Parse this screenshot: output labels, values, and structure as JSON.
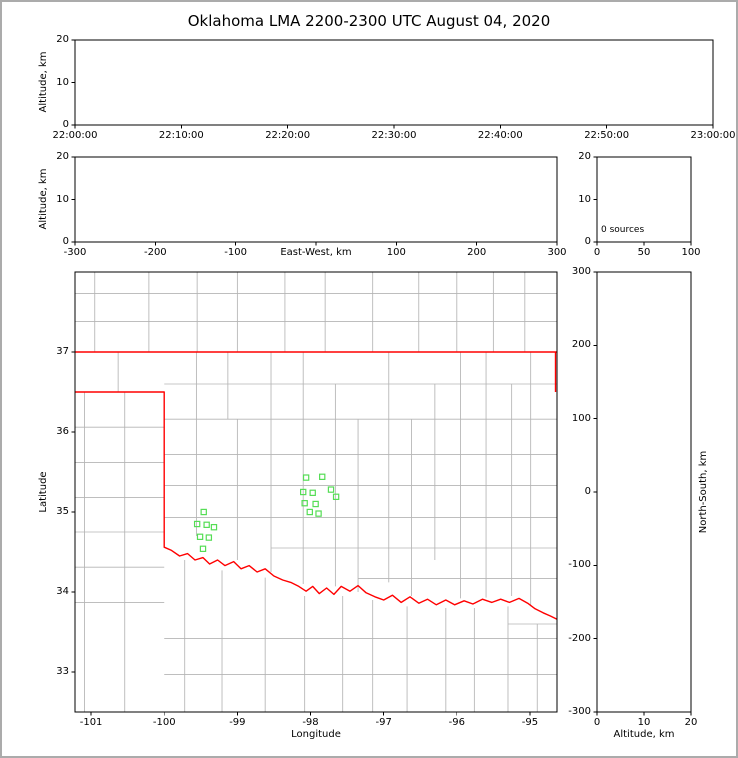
{
  "title": "Oklahoma LMA 2200-2300 UTC August 04, 2020",
  "axis": {
    "altitude_label": "Altitude, km",
    "ew_label": "East-West, km",
    "lon_label": "Longitude",
    "lat_label": "Latitude",
    "ns_label": "North-South, km"
  },
  "histogram_annotation": "0 sources",
  "ticks": {
    "time": [
      "22:00:00",
      "22:10:00",
      "22:20:00",
      "22:30:00",
      "22:40:00",
      "22:50:00",
      "23:00:00"
    ],
    "ew": [
      "-300",
      "-200",
      "-100",
      "",
      "100",
      "200",
      "300"
    ],
    "altitude": [
      "0",
      "10",
      "20"
    ],
    "hist": [
      "0",
      "50",
      "100"
    ],
    "lon": [
      "-101",
      "-100",
      "-99",
      "-98",
      "-97",
      "-96",
      "-95"
    ],
    "lat": [
      "33",
      "34",
      "35",
      "36",
      "37"
    ],
    "ns": [
      "-300",
      "-200",
      "-100",
      "0",
      "100",
      "200",
      "300"
    ]
  },
  "colors": {
    "state_border": "#ff0000",
    "county_lines": "#b4b4b4",
    "stations": "#55dd55",
    "frame": "#000000",
    "outer_border": "#ababab"
  },
  "chart_data": {
    "type": "scatter",
    "title": "Oklahoma LMA 2200-2300 UTC August 04, 2020",
    "time_range_utc": [
      "22:00:00",
      "23:00:00"
    ],
    "source_count": 0,
    "panels": [
      {
        "name": "altitude-vs-time",
        "ylabel": "Altitude, km",
        "ylim_km": [
          0,
          20
        ],
        "points": []
      },
      {
        "name": "altitude-vs-east-west",
        "xlabel": "East-West, km",
        "xlim_km": [
          -300,
          300
        ],
        "ylim_km": [
          0,
          20
        ],
        "points": []
      },
      {
        "name": "altitude-histogram",
        "xlim": [
          0,
          100
        ],
        "ylim_km": [
          0,
          20
        ],
        "annotation": "0 sources",
        "points": []
      },
      {
        "name": "plan-view-map",
        "xlabel": "Longitude",
        "ylabel": "Latitude",
        "xlim_deg": [
          -101.22,
          -94.63
        ],
        "ylim_deg": [
          32.5,
          38.0
        ]
      },
      {
        "name": "north-south-vs-altitude",
        "xlabel": "Altitude, km",
        "ylabel": "North-South, km",
        "xlim_km": [
          0,
          20
        ],
        "ylim_km": [
          -300,
          300
        ],
        "points": []
      }
    ],
    "stations": [
      [
        -98.06,
        35.43
      ],
      [
        -97.84,
        35.44
      ],
      [
        -98.1,
        35.25
      ],
      [
        -97.97,
        35.24
      ],
      [
        -97.72,
        35.28
      ],
      [
        -97.65,
        35.19
      ],
      [
        -98.08,
        35.11
      ],
      [
        -97.93,
        35.1
      ],
      [
        -98.01,
        35.0
      ],
      [
        -97.89,
        34.98
      ],
      [
        -99.46,
        35.0
      ],
      [
        -99.55,
        34.85
      ],
      [
        -99.42,
        34.84
      ],
      [
        -99.32,
        34.81
      ],
      [
        -99.51,
        34.69
      ],
      [
        -99.39,
        34.68
      ],
      [
        -99.47,
        34.54
      ]
    ],
    "state_border": [
      [
        [
          -101.22,
          37.0
        ],
        [
          -94.63,
          37.0
        ]
      ],
      [
        [
          -101.22,
          36.5
        ],
        [
          -100.0,
          36.5
        ],
        [
          -100.0,
          34.56
        ],
        [
          -99.9,
          34.52
        ],
        [
          -99.79,
          34.45
        ],
        [
          -99.68,
          34.48
        ],
        [
          -99.58,
          34.4
        ],
        [
          -99.47,
          34.43
        ],
        [
          -99.38,
          34.35
        ],
        [
          -99.27,
          34.4
        ],
        [
          -99.17,
          34.33
        ],
        [
          -99.05,
          34.38
        ],
        [
          -98.95,
          34.29
        ],
        [
          -98.84,
          34.33
        ],
        [
          -98.73,
          34.25
        ],
        [
          -98.62,
          34.29
        ],
        [
          -98.5,
          34.2
        ],
        [
          -98.38,
          34.15
        ],
        [
          -98.27,
          34.12
        ],
        [
          -98.16,
          34.07
        ],
        [
          -98.06,
          34.01
        ],
        [
          -97.97,
          34.07
        ],
        [
          -97.88,
          33.98
        ],
        [
          -97.78,
          34.05
        ],
        [
          -97.68,
          33.97
        ],
        [
          -97.58,
          34.07
        ],
        [
          -97.46,
          34.01
        ],
        [
          -97.35,
          34.08
        ],
        [
          -97.24,
          33.99
        ],
        [
          -97.12,
          33.94
        ],
        [
          -97.0,
          33.9
        ],
        [
          -96.88,
          33.96
        ],
        [
          -96.76,
          33.87
        ],
        [
          -96.64,
          33.94
        ],
        [
          -96.52,
          33.86
        ],
        [
          -96.4,
          33.91
        ],
        [
          -96.28,
          33.84
        ],
        [
          -96.15,
          33.9
        ],
        [
          -96.03,
          33.84
        ],
        [
          -95.9,
          33.89
        ],
        [
          -95.78,
          33.85
        ],
        [
          -95.65,
          33.91
        ],
        [
          -95.52,
          33.87
        ],
        [
          -95.4,
          33.91
        ],
        [
          -95.28,
          33.87
        ],
        [
          -95.15,
          33.92
        ],
        [
          -95.03,
          33.86
        ],
        [
          -94.93,
          33.79
        ],
        [
          -94.82,
          33.74
        ],
        [
          -94.72,
          33.7
        ],
        [
          -94.63,
          33.66
        ]
      ],
      [
        [
          -94.65,
          37.0
        ],
        [
          -94.65,
          36.5
        ]
      ]
    ],
    "county_lines": {
      "vertical": [
        [
          -100.95,
          38,
          37
        ],
        [
          -100.21,
          38,
          37
        ],
        [
          -99.55,
          38,
          37
        ],
        [
          -99.0,
          38,
          37
        ],
        [
          -98.35,
          38,
          37
        ],
        [
          -97.8,
          38,
          37
        ],
        [
          -97.15,
          38,
          37
        ],
        [
          -96.52,
          38,
          37
        ],
        [
          -96.0,
          38,
          37
        ],
        [
          -95.5,
          38,
          37
        ],
        [
          -95.07,
          38,
          37
        ],
        [
          -100.63,
          37,
          36.5
        ],
        [
          -101.09,
          36.5,
          32.5
        ],
        [
          -100.54,
          36.5,
          32.5
        ],
        [
          -99.56,
          37,
          34.7
        ],
        [
          -99.13,
          37,
          36.16
        ],
        [
          -99.0,
          36.16,
          34.4
        ],
        [
          -98.54,
          37,
          34.25
        ],
        [
          -98.1,
          37,
          34.1
        ],
        [
          -97.66,
          36.6,
          34.07
        ],
        [
          -97.35,
          36.16,
          34.0
        ],
        [
          -96.93,
          37,
          34.12
        ],
        [
          -96.62,
          36.16,
          33.95
        ],
        [
          -96.3,
          36.6,
          34.4
        ],
        [
          -95.95,
          37,
          33.92
        ],
        [
          -95.6,
          37,
          33.93
        ],
        [
          -95.25,
          36.6,
          33.95
        ],
        [
          -94.99,
          37,
          33.82
        ],
        [
          -99.72,
          34.4,
          32.5
        ],
        [
          -99.21,
          34.27,
          32.5
        ],
        [
          -98.62,
          34.18,
          32.5
        ],
        [
          -98.08,
          33.95,
          32.5
        ],
        [
          -97.56,
          33.95,
          32.5
        ],
        [
          -97.15,
          33.9,
          32.5
        ],
        [
          -96.68,
          33.82,
          32.5
        ],
        [
          -96.15,
          33.8,
          32.5
        ],
        [
          -95.76,
          33.8,
          32.5
        ],
        [
          -95.3,
          33.82,
          32.5
        ],
        [
          -94.9,
          33.6,
          32.5
        ]
      ],
      "horizontal": [
        [
          37.38,
          -101.22,
          -94.63
        ],
        [
          37.73,
          -101.22,
          -94.63
        ],
        [
          36.06,
          -101.22,
          -100.0
        ],
        [
          35.62,
          -101.22,
          -100.0
        ],
        [
          35.18,
          -101.22,
          -100.0
        ],
        [
          34.75,
          -101.22,
          -100.0
        ],
        [
          34.31,
          -101.22,
          -100.0
        ],
        [
          33.87,
          -101.22,
          -100.0
        ],
        [
          36.6,
          -100.0,
          -94.63
        ],
        [
          36.16,
          -100.0,
          -94.63
        ],
        [
          35.72,
          -100.0,
          -94.63
        ],
        [
          35.33,
          -100.0,
          -94.63
        ],
        [
          34.93,
          -100.0,
          -94.63
        ],
        [
          34.55,
          -98.54,
          -94.63
        ],
        [
          34.17,
          -97.35,
          -94.63
        ],
        [
          33.42,
          -100.0,
          -94.63
        ],
        [
          32.97,
          -100.0,
          -94.63
        ],
        [
          33.6,
          -95.3,
          -94.63
        ]
      ]
    }
  }
}
